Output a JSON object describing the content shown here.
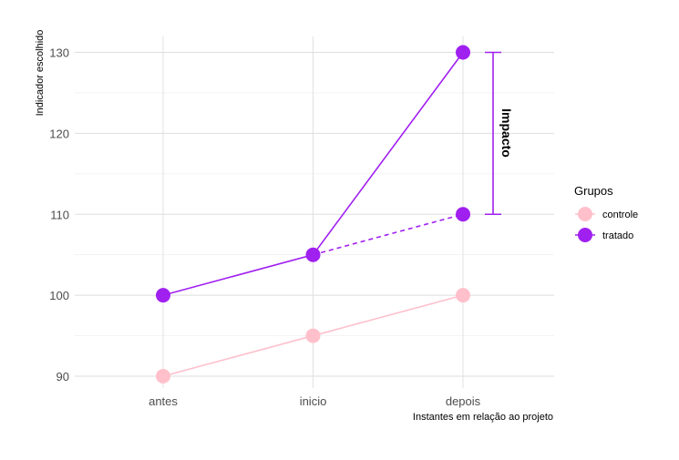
{
  "chart_data": {
    "type": "line",
    "categories": [
      "antes",
      "inicio",
      "depois"
    ],
    "xlabel": "Instantes em relação ao projeto",
    "ylabel": "Indicador escolhido",
    "ylim": [
      88,
      131
    ],
    "yticks": [
      90,
      100,
      110,
      120,
      130
    ],
    "grid": true,
    "series": [
      {
        "name": "controle",
        "values": [
          90,
          95,
          100
        ],
        "color": "#ffc0cb",
        "style": "solid"
      },
      {
        "name": "tratado",
        "values": [
          100,
          105,
          130
        ],
        "color": "#a020f0",
        "style": "solid"
      }
    ],
    "counterfactual": {
      "from": "inicio",
      "to": "depois",
      "values": [
        105,
        110
      ],
      "color": "#a020f0",
      "style": "dashed"
    },
    "annotation": {
      "label": "Impacto",
      "category": "depois",
      "from": 110,
      "to": 130,
      "color": "#a020f0"
    },
    "legend": {
      "title": "Grupos",
      "position": "right",
      "items": [
        {
          "label": "controle",
          "color": "#ffc0cb"
        },
        {
          "label": "tratado",
          "color": "#a020f0"
        }
      ]
    }
  }
}
